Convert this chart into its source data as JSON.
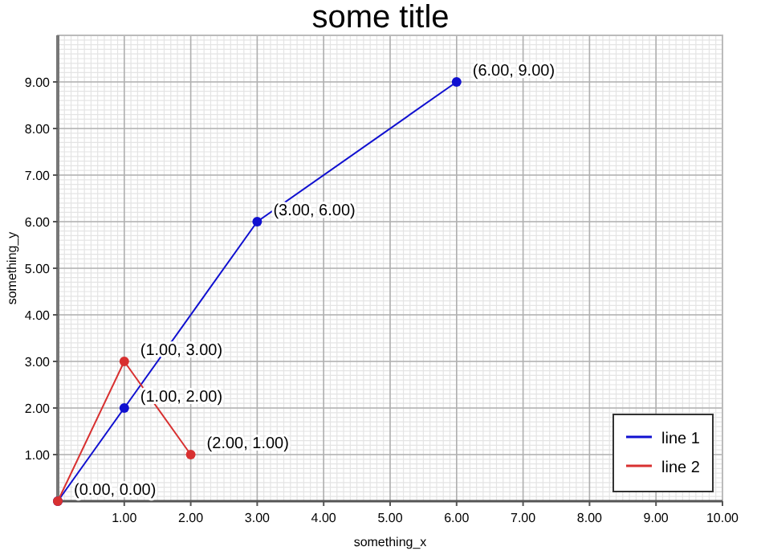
{
  "chart_data": {
    "type": "line",
    "title": "some title",
    "xlabel": "something_x",
    "ylabel": "something_y",
    "xlim": [
      0,
      10
    ],
    "ylim": [
      0,
      10
    ],
    "xticks": [
      {
        "value": 1,
        "label": "1.00"
      },
      {
        "value": 2,
        "label": "2.00"
      },
      {
        "value": 3,
        "label": "3.00"
      },
      {
        "value": 4,
        "label": "4.00"
      },
      {
        "value": 5,
        "label": "5.00"
      },
      {
        "value": 6,
        "label": "6.00"
      },
      {
        "value": 7,
        "label": "7.00"
      },
      {
        "value": 8,
        "label": "8.00"
      },
      {
        "value": 9,
        "label": "9.00"
      },
      {
        "value": 10,
        "label": "10.00"
      }
    ],
    "yticks": [
      {
        "value": 1,
        "label": "1.00"
      },
      {
        "value": 2,
        "label": "2.00"
      },
      {
        "value": 3,
        "label": "3.00"
      },
      {
        "value": 4,
        "label": "4.00"
      },
      {
        "value": 5,
        "label": "5.00"
      },
      {
        "value": 6,
        "label": "6.00"
      },
      {
        "value": 7,
        "label": "7.00"
      },
      {
        "value": 8,
        "label": "8.00"
      },
      {
        "value": 9,
        "label": "9.00"
      }
    ],
    "grid": true,
    "legend": "bottom right",
    "marker": "circle",
    "line_style": "solid",
    "series": [
      {
        "name": "line 1",
        "color": "#1010d0",
        "x": [
          0,
          1,
          3,
          6
        ],
        "values": [
          0,
          2,
          6,
          9
        ],
        "value_labels": [
          "(0.00, 0.00)",
          "(1.00, 2.00)",
          "(3.00, 6.00)",
          "(6.00, 9.00)"
        ]
      },
      {
        "name": "line 2",
        "color": "#d83030",
        "x": [
          0,
          1,
          2
        ],
        "values": [
          0,
          3,
          1
        ],
        "value_labels": [
          null,
          "(1.00, 3.00)",
          "(2.00, 1.00)"
        ]
      }
    ]
  }
}
